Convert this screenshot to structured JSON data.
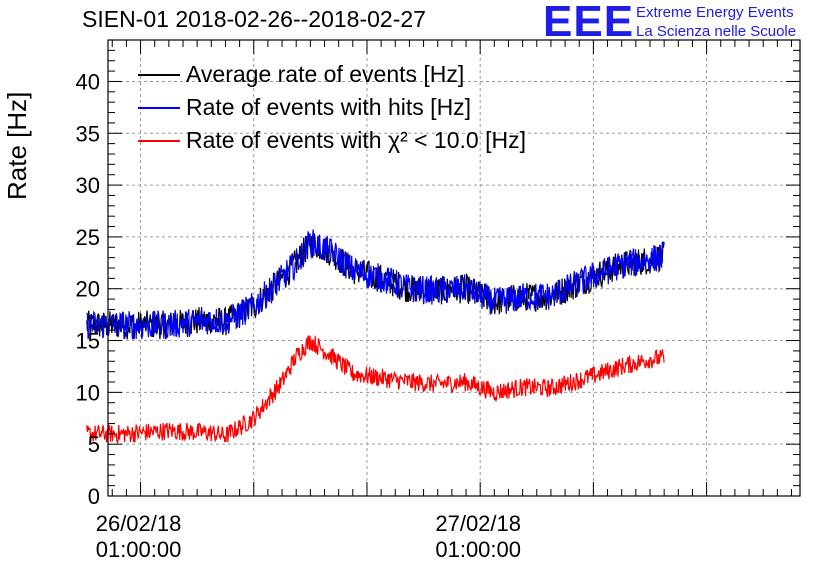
{
  "title": "SIEN-01 2018-02-26--2018-02-27",
  "logo": {
    "mark": "EEE",
    "line1": "Extreme Energy Events",
    "line2": "La Scienza nelle Scuole",
    "color": "#1e1ee6"
  },
  "chart_data": {
    "type": "line",
    "title": "SIEN-01 2018-02-26--2018-02-27",
    "xlabel": "",
    "ylabel": "Rate [Hz]",
    "ylim": [
      0,
      44
    ],
    "yticks": [
      0,
      5,
      10,
      15,
      20,
      25,
      30,
      35,
      40
    ],
    "xlim_hours_from_2018_02_26_00_00": [
      -1.3,
      47.6
    ],
    "xticks": [
      {
        "hour": 1,
        "date": "26/02/18",
        "time": "01:00:00"
      },
      {
        "hour": 25,
        "date": "27/02/18",
        "time": "01:00:00"
      }
    ],
    "grid": true,
    "legend_position": "top-left",
    "x_hours": [
      -2.8,
      0,
      3,
      6,
      7,
      9,
      11,
      12,
      13,
      14.5,
      16,
      18,
      20,
      22,
      24,
      26,
      28,
      30,
      33,
      35,
      37,
      38
    ],
    "series": [
      {
        "name": "Average rate of events [Hz]",
        "color": "#000000",
        "values": [
          16.5,
          16.5,
          16.5,
          17,
          16.8,
          18.3,
          21,
          22.5,
          24.5,
          23.5,
          21.8,
          21,
          20,
          19.8,
          20,
          18.7,
          19.2,
          19.3,
          21.2,
          22.3,
          22.8,
          23.2
        ]
      },
      {
        "name": "Rate of events with hits [Hz]",
        "color": "#0000ff",
        "values": [
          16.5,
          16.5,
          16.5,
          17,
          16.8,
          18.3,
          21,
          22.5,
          24.5,
          23.5,
          21.8,
          21,
          20,
          19.8,
          20,
          18.7,
          19.2,
          19.3,
          21.2,
          22.3,
          22.8,
          23.2
        ]
      },
      {
        "name": "Rate of events with χ² < 10.0 [Hz]",
        "color": "#ff0000",
        "values": [
          6,
          6,
          6.3,
          6.1,
          5.8,
          7.5,
          11,
          13.5,
          15,
          13.5,
          11.8,
          11.4,
          11,
          10.8,
          11,
          10,
          10.5,
          10.4,
          11.6,
          12.5,
          13.2,
          13.3
        ]
      }
    ]
  },
  "legend": {
    "items": [
      {
        "label": "Average rate of events [Hz]",
        "color": "#000000"
      },
      {
        "label": "Rate of events with hits [Hz]",
        "color": "#0000ff"
      },
      {
        "label": "Rate of events with χ² < 10.0 [Hz]",
        "color": "#ff0000"
      }
    ]
  }
}
